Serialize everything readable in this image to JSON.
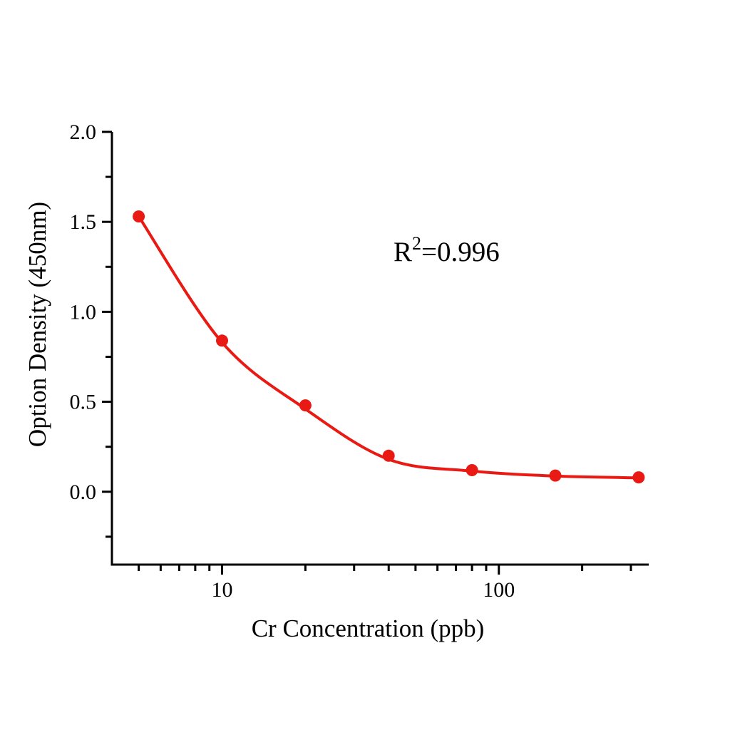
{
  "chart_data": {
    "type": "scatter",
    "title": "",
    "xlabel": "Cr  Concentration (ppb)",
    "ylabel": "Option Density (450nm)",
    "x_scale": "log",
    "y_scale": "linear",
    "xlim": [
      4,
      348
    ],
    "ylim": [
      -0.405,
      2.0
    ],
    "grid": false,
    "legend": "none",
    "x": [
      5,
      10,
      20,
      40,
      80,
      160,
      320
    ],
    "y": [
      1.53,
      0.84,
      0.48,
      0.2,
      0.12,
      0.09,
      0.08
    ],
    "fit_curve_points": [
      [
        5,
        1.53
      ],
      [
        10,
        0.83
      ],
      [
        20,
        0.46
      ],
      [
        40,
        0.18
      ],
      [
        80,
        0.115
      ],
      [
        160,
        0.087
      ],
      [
        320,
        0.077
      ]
    ],
    "x_major_ticks": [
      {
        "value": 10,
        "label": "10"
      },
      {
        "value": 100,
        "label": "100"
      }
    ],
    "x_minor_ticks": [
      5,
      6,
      7,
      8,
      9,
      20,
      30,
      40,
      50,
      60,
      70,
      80,
      90,
      200,
      300
    ],
    "y_major_ticks": [
      {
        "value": 0.0,
        "label": "0.0"
      },
      {
        "value": 0.5,
        "label": "0.5"
      },
      {
        "value": 1.0,
        "label": "1.0"
      },
      {
        "value": 1.5,
        "label": "1.5"
      },
      {
        "value": 2.0,
        "label": "2.0"
      }
    ],
    "y_minor_ticks": [
      -0.25,
      0.25,
      0.75,
      1.25,
      1.75
    ],
    "annotation": {
      "base": "R",
      "sup": "2",
      "rest": "=0.996",
      "full_text": "R2=0.996"
    },
    "colors": {
      "series": "#e81a13",
      "axis": "#000000",
      "background": "#ffffff"
    }
  }
}
